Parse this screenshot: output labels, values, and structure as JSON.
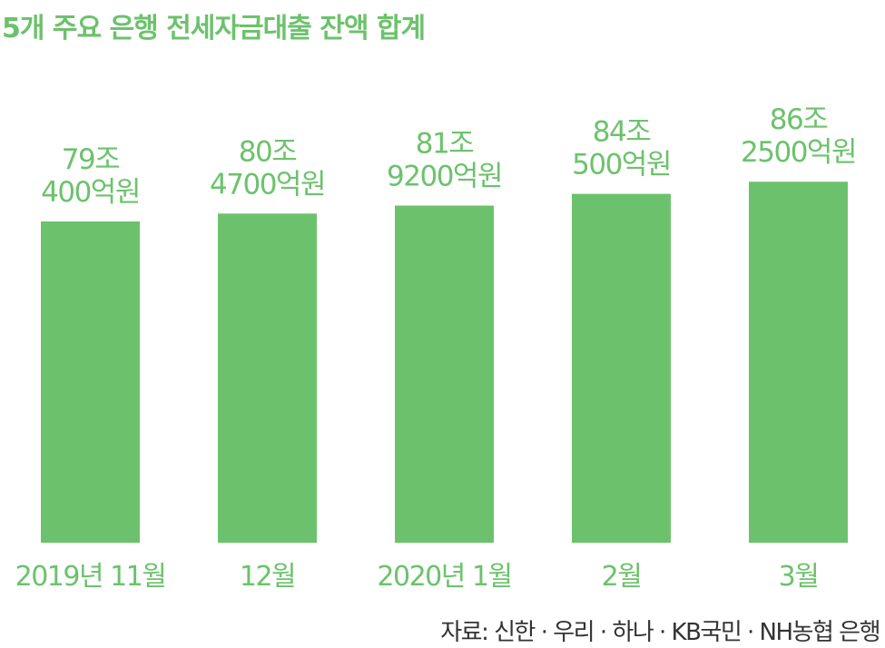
{
  "chart_data": {
    "type": "bar",
    "title": "5개 주요 은행 전세자금대출 잔액 합계",
    "categories": [
      "2019년 11월",
      "12월",
      "2020년 1월",
      "2월",
      "3월"
    ],
    "values": [
      79.04,
      80.47,
      81.92,
      84.05,
      86.25
    ],
    "value_unit": "조원",
    "data_labels": [
      [
        "79조",
        "400억원"
      ],
      [
        "80조",
        "4700억원"
      ],
      [
        "81조",
        "9200억원"
      ],
      [
        "84조",
        "500억원"
      ],
      [
        "86조",
        "2500억원"
      ]
    ],
    "xlabel": "",
    "ylabel": "",
    "grid": false,
    "legend": "none",
    "colors": {
      "bar": "#6cc26c",
      "text": "#6cc26c",
      "source": "#333333"
    }
  },
  "source": "자료: 신한 · 우리 · 하나 · KB국민 · NH농협 은행"
}
